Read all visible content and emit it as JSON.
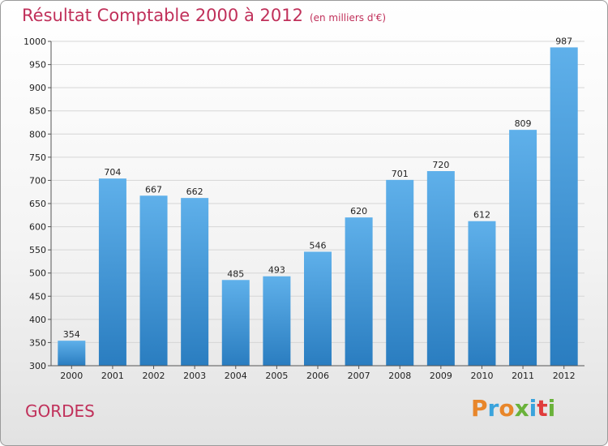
{
  "title": "Résultat Comptable 2000 à 2012",
  "subtitle": "(en milliers d'€)",
  "place": "GORDES",
  "logo": {
    "text": "Proxiti",
    "colors": [
      "#e8862a",
      "#3aa3dc",
      "#e8862a",
      "#6ab23a",
      "#3aa3dc",
      "#e03c3c",
      "#6ab23a"
    ]
  },
  "colors": {
    "title": "#c0305a",
    "bar_top": "#5fb0ea",
    "bar_bottom": "#2a7dc0"
  },
  "chart_data": {
    "type": "bar",
    "categories": [
      "2000",
      "2001",
      "2002",
      "2003",
      "2004",
      "2005",
      "2006",
      "2007",
      "2008",
      "2009",
      "2010",
      "2011",
      "2012"
    ],
    "values": [
      354,
      704,
      667,
      662,
      485,
      493,
      546,
      620,
      701,
      720,
      612,
      809,
      987
    ],
    "ylim": [
      300,
      1000
    ],
    "yticks": [
      300,
      350,
      400,
      450,
      500,
      550,
      600,
      650,
      700,
      750,
      800,
      850,
      900,
      950,
      1000
    ],
    "grid": true
  }
}
